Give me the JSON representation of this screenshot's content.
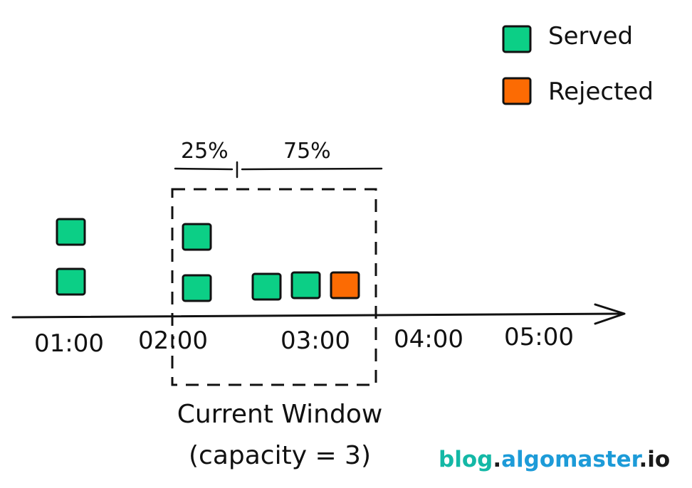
{
  "legend": {
    "items": [
      {
        "label": "Served",
        "color": "#0ccf86"
      },
      {
        "label": "Rejected",
        "color": "#fc6b03"
      }
    ]
  },
  "colors": {
    "served": "#0ccf86",
    "rejected": "#fc6b03",
    "stroke": "#111111",
    "brand_teal": "#14b8a6",
    "brand_blue": "#1d9bd8",
    "brand_dark": "#1a1a1a"
  },
  "timeline": {
    "ticks": [
      "01:00",
      "02:00",
      "03:00",
      "04:00",
      "05:00"
    ]
  },
  "window": {
    "split_left": "25%",
    "split_right": "75%",
    "label_line1": "Current Window",
    "label_line2": "(capacity = 3)"
  },
  "requests": [
    {
      "status": "served"
    },
    {
      "status": "served"
    },
    {
      "status": "served"
    },
    {
      "status": "served"
    },
    {
      "status": "served"
    },
    {
      "status": "served"
    },
    {
      "status": "rejected"
    }
  ],
  "watermark": {
    "part1": "blog",
    "dot1": ".",
    "part2": "algomaster",
    "dot2": ".",
    "part3": "io"
  }
}
